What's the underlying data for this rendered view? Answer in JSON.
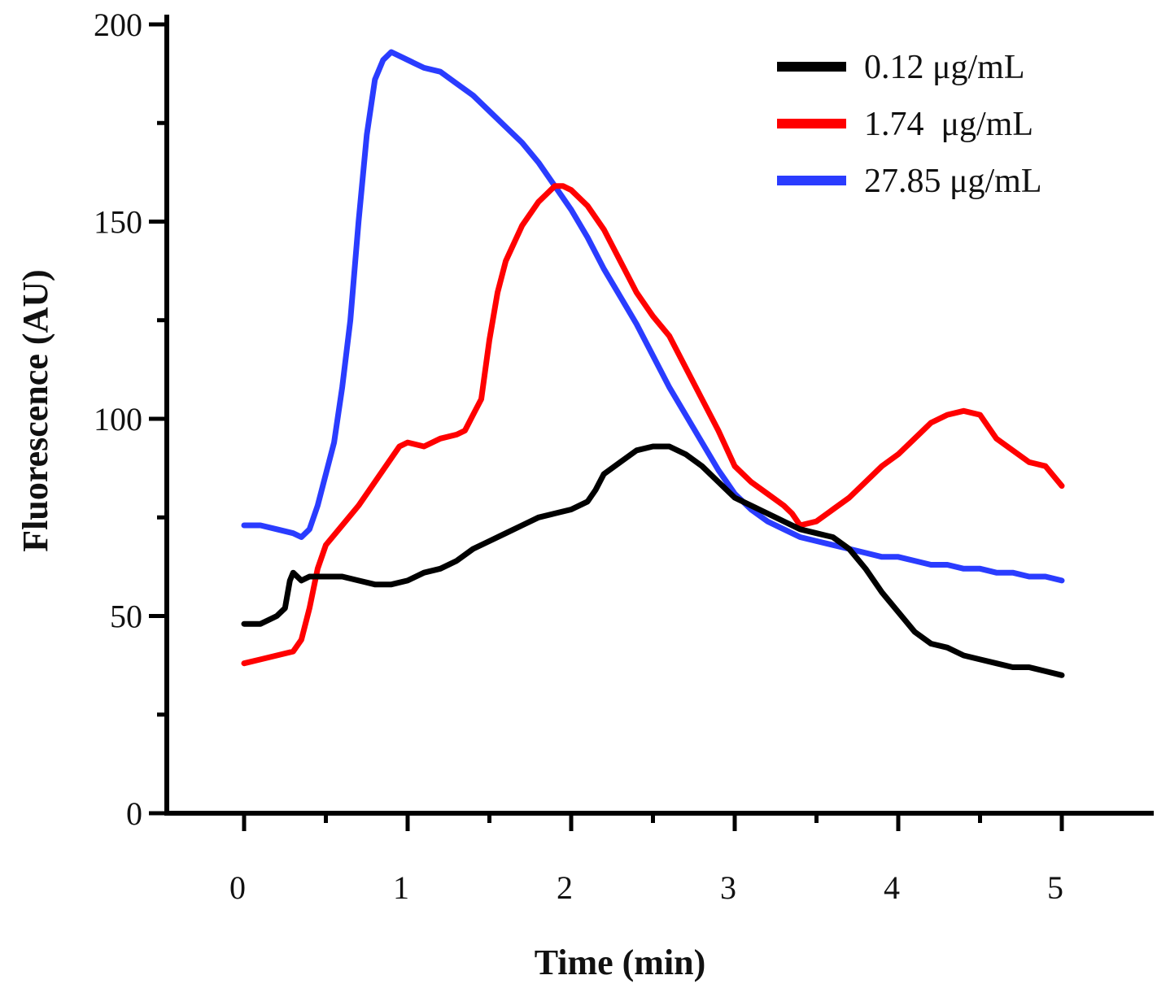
{
  "chart_data": {
    "type": "line",
    "title": "",
    "xlabel": "Time (min)",
    "ylabel": "Fluorescence (AU)",
    "xlim": [
      0,
      5
    ],
    "ylim": [
      0,
      200
    ],
    "x_ticks": [
      0,
      1,
      2,
      3,
      4,
      5
    ],
    "y_ticks": [
      0,
      50,
      100,
      150,
      200
    ],
    "x_minor_ticks": [
      0.5,
      1.5,
      2.5,
      3.5,
      4.5
    ],
    "y_minor_ticks": [
      25,
      75,
      125,
      175
    ],
    "grid": false,
    "legend": "top-right",
    "series": [
      {
        "name": "0.12 μg/mL",
        "color": "#000000",
        "points": [
          [
            0.0,
            48
          ],
          [
            0.1,
            48
          ],
          [
            0.2,
            50
          ],
          [
            0.25,
            52
          ],
          [
            0.28,
            59
          ],
          [
            0.3,
            61
          ],
          [
            0.35,
            59
          ],
          [
            0.4,
            60
          ],
          [
            0.5,
            60
          ],
          [
            0.6,
            60
          ],
          [
            0.7,
            59
          ],
          [
            0.8,
            58
          ],
          [
            0.9,
            58
          ],
          [
            1.0,
            59
          ],
          [
            1.1,
            61
          ],
          [
            1.2,
            62
          ],
          [
            1.3,
            64
          ],
          [
            1.4,
            67
          ],
          [
            1.5,
            69
          ],
          [
            1.6,
            71
          ],
          [
            1.7,
            73
          ],
          [
            1.8,
            75
          ],
          [
            1.9,
            76
          ],
          [
            2.0,
            77
          ],
          [
            2.1,
            79
          ],
          [
            2.15,
            82
          ],
          [
            2.2,
            86
          ],
          [
            2.3,
            89
          ],
          [
            2.4,
            92
          ],
          [
            2.5,
            93
          ],
          [
            2.6,
            93
          ],
          [
            2.7,
            91
          ],
          [
            2.8,
            88
          ],
          [
            2.9,
            84
          ],
          [
            3.0,
            80
          ],
          [
            3.1,
            78
          ],
          [
            3.2,
            76
          ],
          [
            3.3,
            74
          ],
          [
            3.4,
            72
          ],
          [
            3.5,
            71
          ],
          [
            3.6,
            70
          ],
          [
            3.7,
            67
          ],
          [
            3.8,
            62
          ],
          [
            3.9,
            56
          ],
          [
            4.0,
            51
          ],
          [
            4.1,
            46
          ],
          [
            4.2,
            43
          ],
          [
            4.3,
            42
          ],
          [
            4.4,
            40
          ],
          [
            4.5,
            39
          ],
          [
            4.6,
            38
          ],
          [
            4.7,
            37
          ],
          [
            4.8,
            37
          ],
          [
            4.9,
            36
          ],
          [
            5.0,
            35
          ]
        ]
      },
      {
        "name": "1.74  μg/mL",
        "color": "#ff0000",
        "points": [
          [
            0.0,
            38
          ],
          [
            0.1,
            39
          ],
          [
            0.2,
            40
          ],
          [
            0.3,
            41
          ],
          [
            0.35,
            44
          ],
          [
            0.4,
            52
          ],
          [
            0.45,
            62
          ],
          [
            0.5,
            68
          ],
          [
            0.6,
            73
          ],
          [
            0.7,
            78
          ],
          [
            0.8,
            84
          ],
          [
            0.9,
            90
          ],
          [
            0.95,
            93
          ],
          [
            1.0,
            94
          ],
          [
            1.1,
            93
          ],
          [
            1.2,
            95
          ],
          [
            1.3,
            96
          ],
          [
            1.35,
            97
          ],
          [
            1.4,
            101
          ],
          [
            1.45,
            105
          ],
          [
            1.5,
            120
          ],
          [
            1.55,
            132
          ],
          [
            1.6,
            140
          ],
          [
            1.7,
            149
          ],
          [
            1.8,
            155
          ],
          [
            1.85,
            157
          ],
          [
            1.9,
            159
          ],
          [
            1.95,
            159
          ],
          [
            2.0,
            158
          ],
          [
            2.1,
            154
          ],
          [
            2.2,
            148
          ],
          [
            2.3,
            140
          ],
          [
            2.4,
            132
          ],
          [
            2.5,
            126
          ],
          [
            2.6,
            121
          ],
          [
            2.7,
            113
          ],
          [
            2.8,
            105
          ],
          [
            2.9,
            97
          ],
          [
            3.0,
            88
          ],
          [
            3.1,
            84
          ],
          [
            3.2,
            81
          ],
          [
            3.3,
            78
          ],
          [
            3.35,
            76
          ],
          [
            3.4,
            73
          ],
          [
            3.5,
            74
          ],
          [
            3.6,
            77
          ],
          [
            3.7,
            80
          ],
          [
            3.8,
            84
          ],
          [
            3.9,
            88
          ],
          [
            4.0,
            91
          ],
          [
            4.1,
            95
          ],
          [
            4.2,
            99
          ],
          [
            4.3,
            101
          ],
          [
            4.4,
            102
          ],
          [
            4.5,
            101
          ],
          [
            4.6,
            95
          ],
          [
            4.7,
            92
          ],
          [
            4.8,
            89
          ],
          [
            4.9,
            88
          ],
          [
            5.0,
            83
          ]
        ]
      },
      {
        "name": "27.85 μg/mL",
        "color": "#2a3cff",
        "points": [
          [
            0.0,
            73
          ],
          [
            0.1,
            73
          ],
          [
            0.2,
            72
          ],
          [
            0.3,
            71
          ],
          [
            0.35,
            70
          ],
          [
            0.4,
            72
          ],
          [
            0.45,
            78
          ],
          [
            0.5,
            86
          ],
          [
            0.55,
            94
          ],
          [
            0.6,
            108
          ],
          [
            0.65,
            125
          ],
          [
            0.7,
            150
          ],
          [
            0.75,
            172
          ],
          [
            0.8,
            186
          ],
          [
            0.85,
            191
          ],
          [
            0.9,
            193
          ],
          [
            1.0,
            191
          ],
          [
            1.1,
            189
          ],
          [
            1.2,
            188
          ],
          [
            1.3,
            185
          ],
          [
            1.4,
            182
          ],
          [
            1.5,
            178
          ],
          [
            1.6,
            174
          ],
          [
            1.7,
            170
          ],
          [
            1.8,
            165
          ],
          [
            1.9,
            159
          ],
          [
            2.0,
            153
          ],
          [
            2.1,
            146
          ],
          [
            2.2,
            138
          ],
          [
            2.3,
            131
          ],
          [
            2.4,
            124
          ],
          [
            2.5,
            116
          ],
          [
            2.6,
            108
          ],
          [
            2.7,
            101
          ],
          [
            2.8,
            94
          ],
          [
            2.9,
            87
          ],
          [
            3.0,
            81
          ],
          [
            3.1,
            77
          ],
          [
            3.2,
            74
          ],
          [
            3.3,
            72
          ],
          [
            3.4,
            70
          ],
          [
            3.5,
            69
          ],
          [
            3.6,
            68
          ],
          [
            3.7,
            67
          ],
          [
            3.8,
            66
          ],
          [
            3.9,
            65
          ],
          [
            4.0,
            65
          ],
          [
            4.1,
            64
          ],
          [
            4.2,
            63
          ],
          [
            4.3,
            63
          ],
          [
            4.4,
            62
          ],
          [
            4.5,
            62
          ],
          [
            4.6,
            61
          ],
          [
            4.7,
            61
          ],
          [
            4.8,
            60
          ],
          [
            4.9,
            60
          ],
          [
            5.0,
            59
          ]
        ]
      }
    ]
  }
}
